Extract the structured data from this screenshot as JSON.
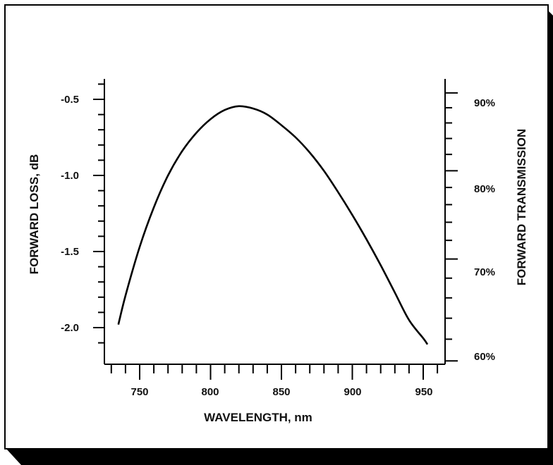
{
  "chart_data": {
    "type": "line",
    "title": "",
    "xlabel": "WAVELENGTH, nm",
    "ylabel": "FORWARD LOSS, dB",
    "y2label": "FORWARD TRANSMISSION",
    "xlim": [
      726,
      962
    ],
    "ylim": [
      -2.2,
      -0.38
    ],
    "xticks": [
      750,
      800,
      850,
      900,
      950
    ],
    "xtick_labels": [
      "750",
      "800",
      "850",
      "900",
      "950"
    ],
    "yticks": [
      -0.5,
      -1.0,
      -1.5,
      -2.0
    ],
    "ytick_labels": [
      "-0.5",
      "-1.0",
      "-1.5",
      "-2.0"
    ],
    "y2ticks": [
      90,
      80,
      70,
      60
    ],
    "y2tick_labels": [
      "90%",
      "80%",
      "70%",
      "60%"
    ],
    "grid": false,
    "series": [
      {
        "x": [
          735,
          740,
          750,
          760,
          770,
          780,
          790,
          800,
          810,
          820,
          830,
          840,
          850,
          860,
          870,
          880,
          890,
          900,
          910,
          920,
          930,
          940,
          950,
          953
        ],
        "y": [
          -1.98,
          -1.79,
          -1.47,
          -1.21,
          -1.0,
          -0.84,
          -0.72,
          -0.63,
          -0.57,
          -0.545,
          -0.56,
          -0.6,
          -0.67,
          -0.75,
          -0.85,
          -0.97,
          -1.11,
          -1.26,
          -1.42,
          -1.59,
          -1.77,
          -1.95,
          -2.07,
          -2.11
        ]
      }
    ],
    "colors": {
      "line": "#000000",
      "frame": "#000000",
      "shadow": "#000000"
    }
  }
}
